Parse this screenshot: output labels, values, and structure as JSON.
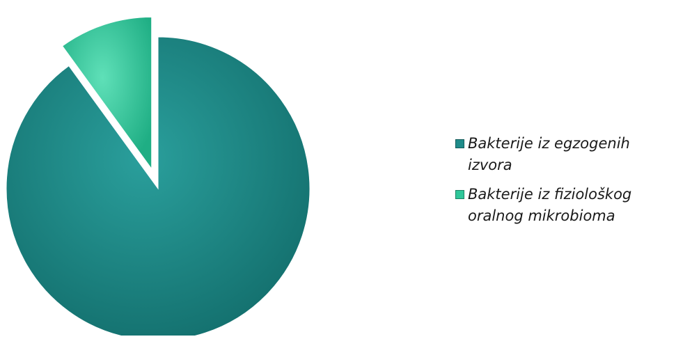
{
  "chart_data": {
    "type": "pie",
    "title": "",
    "series": [
      {
        "name": "Bakterije iz egzogenih izvora",
        "value": 90,
        "color": "#1f8c8a",
        "exploded": false
      },
      {
        "name": "Bakterije iz fiziološkog oralnog mikrobioma",
        "value": 10,
        "color": "#2fc79a",
        "exploded": true
      }
    ],
    "legend_position": "right",
    "legend_lines": [
      [
        "Bakterije iz egzogenih",
        "izvora"
      ],
      [
        "Bakterije iz fiziološkog",
        "oralnog mikrobioma"
      ]
    ]
  }
}
